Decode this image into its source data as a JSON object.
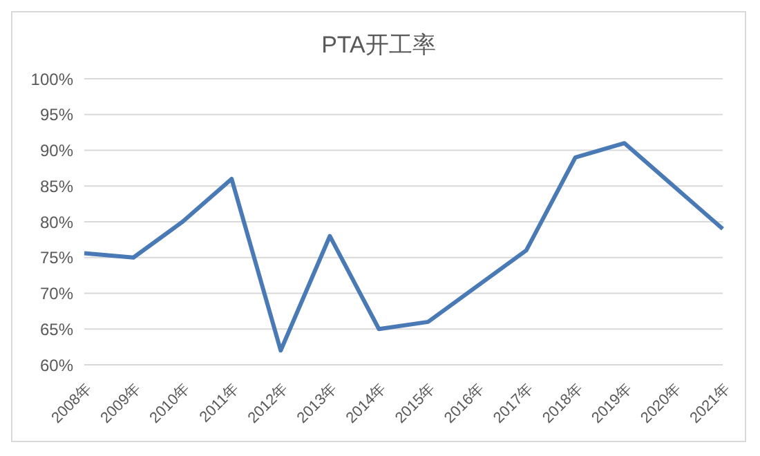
{
  "chart_data": {
    "type": "line",
    "title": "PTA开工率",
    "categories": [
      "2008年",
      "2009年",
      "2010年",
      "2011年",
      "2012年",
      "2013年",
      "2014年",
      "2015年",
      "2016年",
      "2017年",
      "2018年",
      "2019年",
      "2020年",
      "2021年"
    ],
    "series": [
      {
        "color": "#4a7ab5",
        "values": [
          75.6,
          75,
          80,
          86,
          62,
          78,
          65,
          66,
          71,
          76,
          89,
          91,
          85,
          79
        ]
      }
    ],
    "ylim": [
      60,
      100
    ],
    "yticks": [
      {
        "value": 60,
        "label": "60%"
      },
      {
        "value": 65,
        "label": "65%"
      },
      {
        "value": 70,
        "label": "70%"
      },
      {
        "value": 75,
        "label": "75%"
      },
      {
        "value": 80,
        "label": "80%"
      },
      {
        "value": 85,
        "label": "85%"
      },
      {
        "value": 90,
        "label": "90%"
      },
      {
        "value": 95,
        "label": "95%"
      },
      {
        "value": 100,
        "label": "100%"
      }
    ],
    "grid": "y",
    "marker": "none",
    "line_style": "solid"
  }
}
